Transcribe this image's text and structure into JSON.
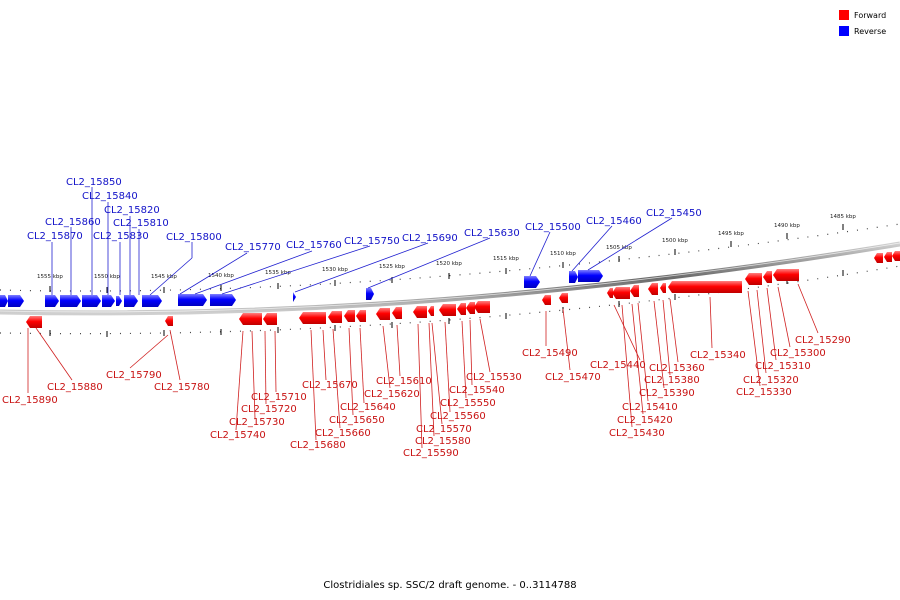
{
  "title": "Clostridiales sp. SSC/2 draft genome. - 0..3114788",
  "legend": [
    {
      "label": "Forward",
      "color": "#ff0000"
    },
    {
      "label": "Reverse",
      "color": "#0000ff"
    }
  ],
  "scale_ticks": [
    "1555 kbp",
    "1550 kbp",
    "1545 kbp",
    "1540 kbp",
    "1535 kbp",
    "1530 kbp",
    "1525 kbp",
    "1520 kbp",
    "1515 kbp",
    "1510 kbp",
    "1505 kbp",
    "1500 kbp",
    "1495 kbp",
    "1490 kbp",
    "1485 kbp"
  ],
  "reverse_genes": [
    "CL2_15850",
    "CL2_15840",
    "CL2_15860",
    "CL2_15820",
    "CL2_15810",
    "CL2_15870",
    "CL2_15830",
    "CL2_15800",
    "CL2_15770",
    "CL2_15760",
    "CL2_15750",
    "CL2_15690",
    "CL2_15630",
    "CL2_15500",
    "CL2_15460",
    "CL2_15450"
  ],
  "forward_genes": [
    "CL2_15890",
    "CL2_15880",
    "CL2_15790",
    "CL2_15780",
    "CL2_15740",
    "CL2_15730",
    "CL2_15720",
    "CL2_15710",
    "CL2_15680",
    "CL2_15670",
    "CL2_15660",
    "CL2_15650",
    "CL2_15640",
    "CL2_15620",
    "CL2_15610",
    "CL2_15590",
    "CL2_15580",
    "CL2_15570",
    "CL2_15560",
    "CL2_15550",
    "CL2_15540",
    "CL2_15530",
    "CL2_15490",
    "CL2_15470",
    "CL2_15440",
    "CL2_15430",
    "CL2_15420",
    "CL2_15410",
    "CL2_15390",
    "CL2_15380",
    "CL2_15360",
    "CL2_15340",
    "CL2_15330",
    "CL2_15320",
    "CL2_15310",
    "CL2_15300",
    "CL2_15290"
  ]
}
